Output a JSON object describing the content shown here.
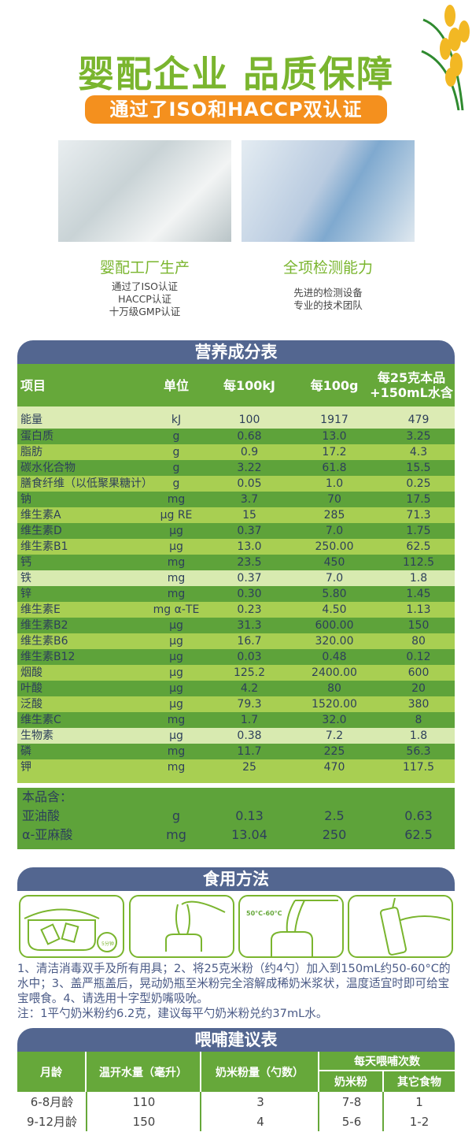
{
  "header": {
    "title": "婴配企业 品质保障",
    "badge": "通过了ISO和HACCP双认证"
  },
  "cards": [
    {
      "title": "婴配工厂生产",
      "lines": [
        "通过了ISO认证",
        "HACCP认证",
        "十万级GMP认证"
      ]
    },
    {
      "title": "全项检测能力",
      "lines": [
        "先进的检测设备",
        "专业的技术团队"
      ]
    }
  ],
  "nutrition": {
    "title": "营养成分表",
    "columns": [
      "项目",
      "单位",
      "每100kJ",
      "每100g",
      "每25克本品\n+150mL水含"
    ],
    "col4_line1": "每25克本品",
    "col4_line2": "+150mL水含",
    "rows": [
      [
        "能量",
        "kJ",
        "100",
        "1917",
        "479"
      ],
      [
        "蛋白质",
        "g",
        "0.68",
        "13.0",
        "3.25"
      ],
      [
        "脂肪",
        "g",
        "0.9",
        "17.2",
        "4.3"
      ],
      [
        "碳水化合物",
        "g",
        "3.22",
        "61.8",
        "15.5"
      ],
      [
        "膳食纤维（以低聚果糖计）",
        "g",
        "0.05",
        "1.0",
        "0.25"
      ],
      [
        "钠",
        "mg",
        "3.7",
        "70",
        "17.5"
      ],
      [
        "维生素A",
        "μg RE",
        "15",
        "285",
        "71.3"
      ],
      [
        "维生素D",
        "μg",
        "0.37",
        "7.0",
        "1.75"
      ],
      [
        "维生素B1",
        "μg",
        "13.0",
        "250.00",
        "62.5"
      ],
      [
        "钙",
        "mg",
        "23.5",
        "450",
        "112.5"
      ],
      [
        "铁",
        "mg",
        "0.37",
        "7.0",
        "1.8"
      ],
      [
        "锌",
        "mg",
        "0.30",
        "5.80",
        "1.45"
      ],
      [
        "维生素E",
        "mg α-TE",
        "0.23",
        "4.50",
        "1.13"
      ],
      [
        "维生素B2",
        "μg",
        "31.3",
        "600.00",
        "150"
      ],
      [
        "维生素B6",
        "μg",
        "16.7",
        "320.00",
        "80"
      ],
      [
        "维生素B12",
        "μg",
        "0.03",
        "0.48",
        "0.12"
      ],
      [
        "烟酸",
        "μg",
        "125.2",
        "2400.00",
        "600"
      ],
      [
        "叶酸",
        "μg",
        "4.2",
        "80",
        "20"
      ],
      [
        "泛酸",
        "μg",
        "79.3",
        "1520.00",
        "380"
      ],
      [
        "维生素C",
        "mg",
        "1.7",
        "32.0",
        "8"
      ],
      [
        "生物素",
        "μg",
        "0.38",
        "7.2",
        "1.8"
      ],
      [
        "磷",
        "mg",
        "11.7",
        "225",
        "56.3"
      ],
      [
        "钾",
        "mg",
        "25",
        "470",
        "117.5"
      ]
    ],
    "extra_label": "本品含：",
    "extra_rows": [
      [
        "亚油酸",
        "g",
        "0.13",
        "2.5",
        "0.63"
      ],
      [
        "α-亚麻酸",
        "mg",
        "13.04",
        "250",
        "62.5"
      ]
    ]
  },
  "usage": {
    "title": "食用方法",
    "temp_label": "50°C-60°C",
    "timer_label": "5分钟",
    "text": "1、清洁消毒双手及所有用具；2、将25克米粉（约4勺）加入到150mL约50-60°C的水中；3、盖严瓶盖后，晃动奶瓶至米粉完全溶解成稀奶米浆状，温度适宜时即可给宝宝喂食。4、请选用十字型奶嘴吸吮。",
    "note": "注：1平勺奶米粉约6.2克，建议每平勺奶米粉兑约37mL水。"
  },
  "feeding": {
    "title": "喂哺建议表",
    "headers": {
      "age": "月龄",
      "water": "温开水量（毫升）",
      "scoops": "奶米粉量（勺数）",
      "daily": "每天喂哺次数",
      "powder": "奶米粉",
      "other": "其它食物"
    },
    "rows": [
      {
        "age": "6-8月龄",
        "water": "110",
        "scoops": "3",
        "powder": "7-8",
        "other": "1"
      },
      {
        "age": "9-12月龄",
        "water": "150",
        "scoops": "4",
        "powder": "5-6",
        "other": "1-2"
      }
    ]
  },
  "colors": {
    "green": "#7ab52e",
    "orange": "#f4901e",
    "navy": "#536690",
    "table_dark": "#5ea33a",
    "table_light": "#a8cf52"
  }
}
